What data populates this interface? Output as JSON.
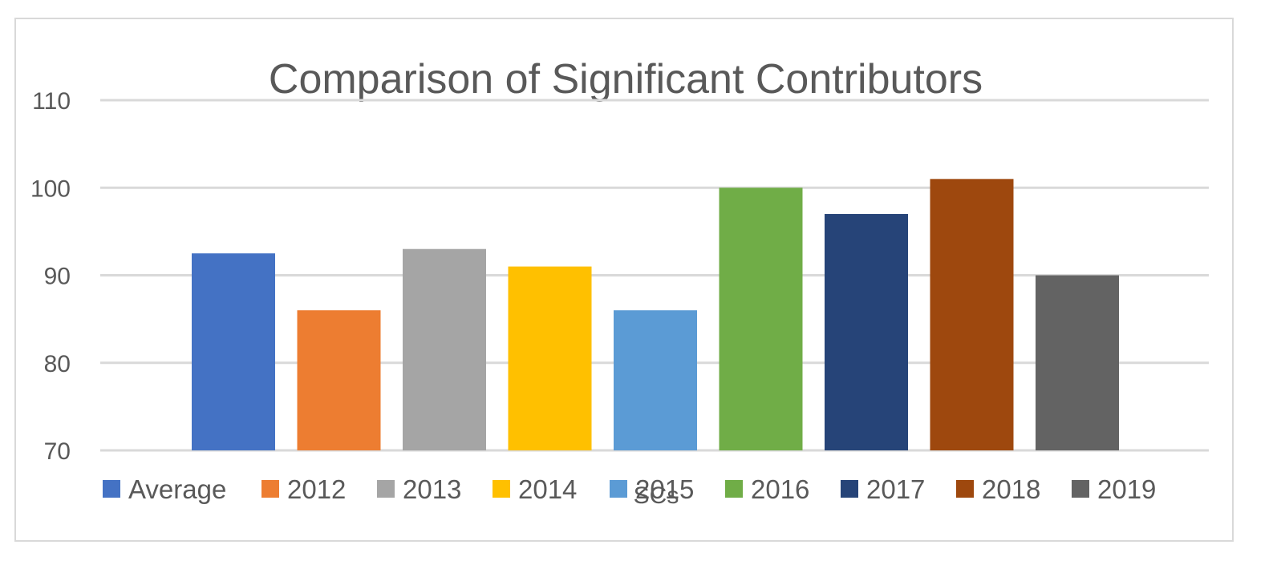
{
  "chart_data": {
    "type": "bar",
    "title": "Comparison of Significant Contributors",
    "xlabel": "SCs",
    "ylabel": "",
    "ylim": [
      70,
      110
    ],
    "yticks": [
      110,
      100,
      90,
      80,
      70
    ],
    "grid": true,
    "legend_position": "bottom",
    "categories": [
      "Average",
      "2012",
      "2013",
      "2014",
      "2015",
      "2016",
      "2017",
      "2018",
      "2019"
    ],
    "values": [
      92.5,
      86,
      93,
      91,
      86,
      100,
      97,
      101,
      90
    ],
    "colors": [
      "#4472C4",
      "#ED7D31",
      "#A5A5A5",
      "#FFC000",
      "#5B9BD5",
      "#70AD47",
      "#264478",
      "#9E480E",
      "#636363"
    ]
  }
}
